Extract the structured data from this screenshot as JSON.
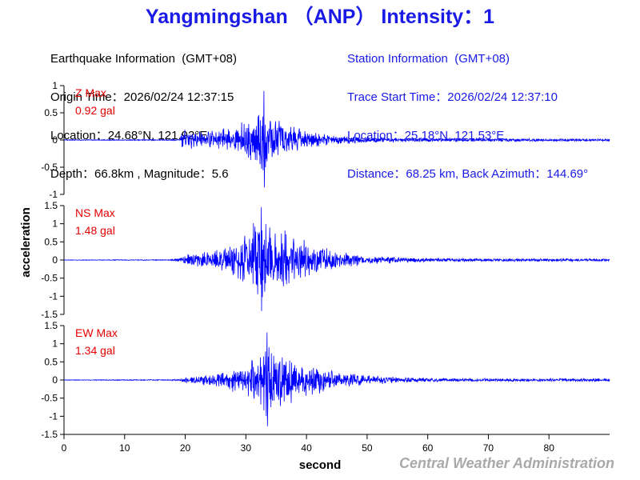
{
  "header": {
    "title": "Yangmingshan （ANP） Intensity：1"
  },
  "earthquake_info": [
    "Earthquake Information  (GMT+08)",
    "Origin Time：2026/02/24 12:37:15",
    "Location：24.68°N, 121.92°E",
    "Depth：66.8km , Magnitude：5.6"
  ],
  "station_info": [
    "Station Information  (GMT+08)",
    "Trace Start Time：2026/02/24 12:37:10",
    "Location：25.18°N, 121.53°E",
    "Distance：68.25 km, Back Azimuth：144.69°"
  ],
  "footer": {
    "credit": "Central Weather Administration"
  },
  "colors": {
    "title": "#1a1ae6",
    "trace": "#0000ff",
    "peak_label": "#e60000",
    "credit": "#a9a9a9"
  },
  "chart_data": {
    "type": "line",
    "xlabel": "second",
    "ylabel": "acceleration",
    "xlim": [
      0,
      90
    ],
    "x_ticks": [
      0,
      10,
      20,
      30,
      40,
      50,
      60,
      70,
      80
    ],
    "grid": false,
    "series": [
      {
        "name": "Z",
        "max_label": "Z Max",
        "max_value": "0.92 gal",
        "ylim": [
          -1,
          1
        ],
        "y_ticks": [
          1,
          0.5,
          0,
          -0.5,
          -1
        ],
        "peak_abs": 0.92,
        "onset": 19.2,
        "peak_time": 33.0,
        "envelope": [
          [
            0,
            0.01
          ],
          [
            19,
            0.015
          ],
          [
            19.5,
            0.22
          ],
          [
            22,
            0.2
          ],
          [
            26,
            0.24
          ],
          [
            28,
            0.3
          ],
          [
            30,
            0.42
          ],
          [
            31.5,
            0.6
          ],
          [
            33,
            0.92
          ],
          [
            35,
            0.5
          ],
          [
            37,
            0.38
          ],
          [
            40,
            0.2
          ],
          [
            43,
            0.14
          ],
          [
            48,
            0.08
          ],
          [
            55,
            0.05
          ],
          [
            65,
            0.035
          ],
          [
            90,
            0.03
          ]
        ]
      },
      {
        "name": "NS",
        "max_label": "NS Max",
        "max_value": "1.48 gal",
        "ylim": [
          -1.5,
          1.5
        ],
        "y_ticks": [
          1.5,
          1,
          0.5,
          0,
          -0.5,
          -1,
          -1.5
        ],
        "peak_abs": 1.48,
        "onset": 18.5,
        "peak_time": 32.5,
        "envelope": [
          [
            0,
            0.01
          ],
          [
            17,
            0.015
          ],
          [
            19,
            0.06
          ],
          [
            20,
            0.18
          ],
          [
            24,
            0.3
          ],
          [
            27,
            0.45
          ],
          [
            30,
            0.9
          ],
          [
            32.5,
            1.48
          ],
          [
            35,
            1.2
          ],
          [
            38,
            0.85
          ],
          [
            41,
            0.6
          ],
          [
            45,
            0.3
          ],
          [
            50,
            0.15
          ],
          [
            58,
            0.08
          ],
          [
            70,
            0.05
          ],
          [
            90,
            0.05
          ]
        ]
      },
      {
        "name": "EW",
        "max_label": "EW Max",
        "max_value": "1.34 gal",
        "ylim": [
          -1.5,
          1.5
        ],
        "y_ticks": [
          1.5,
          1,
          0.5,
          0,
          -0.5,
          -1,
          -1.5
        ],
        "peak_abs": 1.34,
        "onset": 19.0,
        "peak_time": 33.5,
        "envelope": [
          [
            0,
            0.01
          ],
          [
            19,
            0.02
          ],
          [
            20,
            0.12
          ],
          [
            24,
            0.22
          ],
          [
            27,
            0.3
          ],
          [
            30,
            0.6
          ],
          [
            33.5,
            1.34
          ],
          [
            36,
            0.9
          ],
          [
            39,
            0.6
          ],
          [
            42,
            0.45
          ],
          [
            46,
            0.25
          ],
          [
            50,
            0.15
          ],
          [
            58,
            0.08
          ],
          [
            70,
            0.05
          ],
          [
            90,
            0.05
          ]
        ]
      }
    ]
  }
}
